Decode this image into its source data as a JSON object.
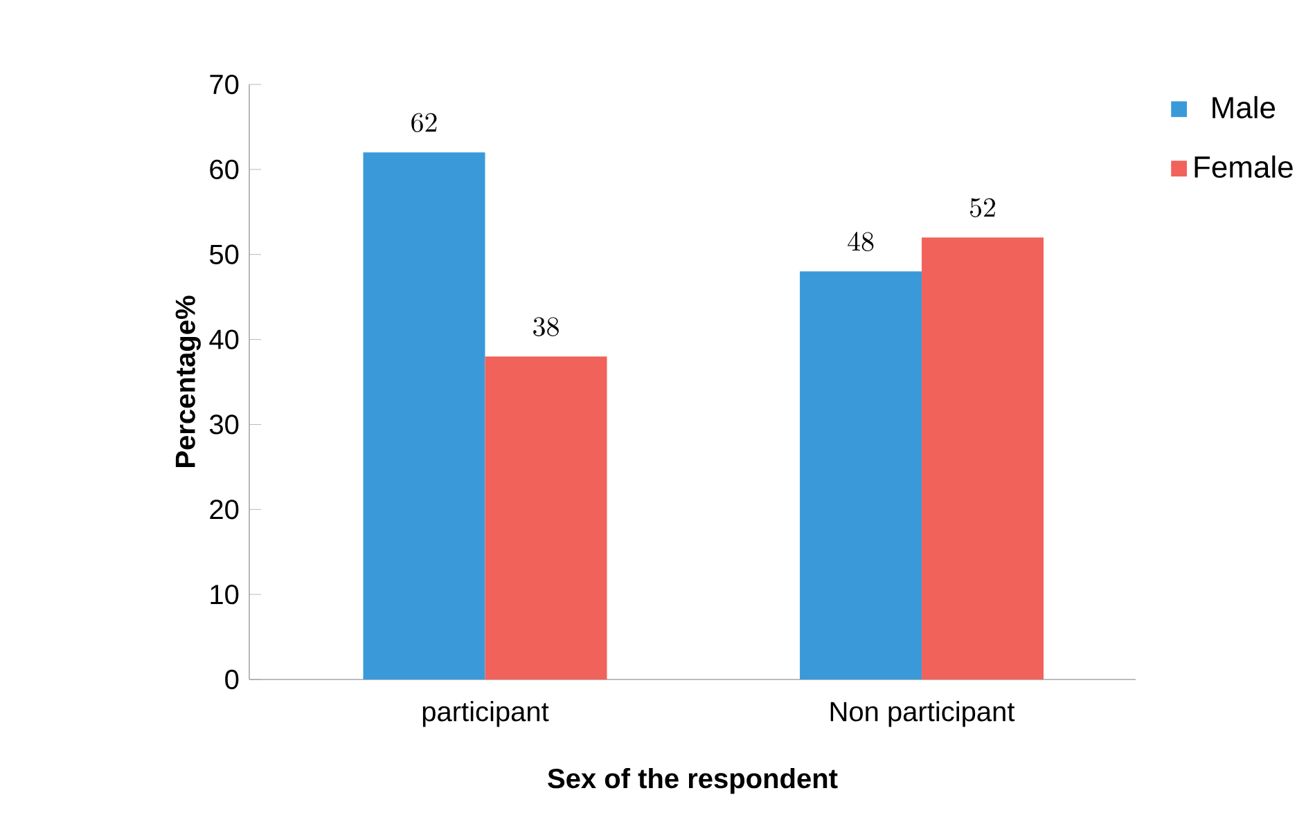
{
  "chart_data": {
    "type": "bar",
    "xlabel": "Sex of the respondent",
    "ylabel": "Percentage%",
    "categories": [
      "participant",
      "Non participant"
    ],
    "series": [
      {
        "name": "Male",
        "color": "#3a9ad9",
        "values": [
          62,
          48
        ]
      },
      {
        "name": "Female",
        "color": "#f0625a",
        "values": [
          38,
          52
        ]
      }
    ],
    "ylim": [
      0,
      70
    ],
    "yticks": [
      0,
      10,
      20,
      30,
      40,
      50,
      60,
      70
    ],
    "data_labels": true,
    "legend": "top right"
  }
}
